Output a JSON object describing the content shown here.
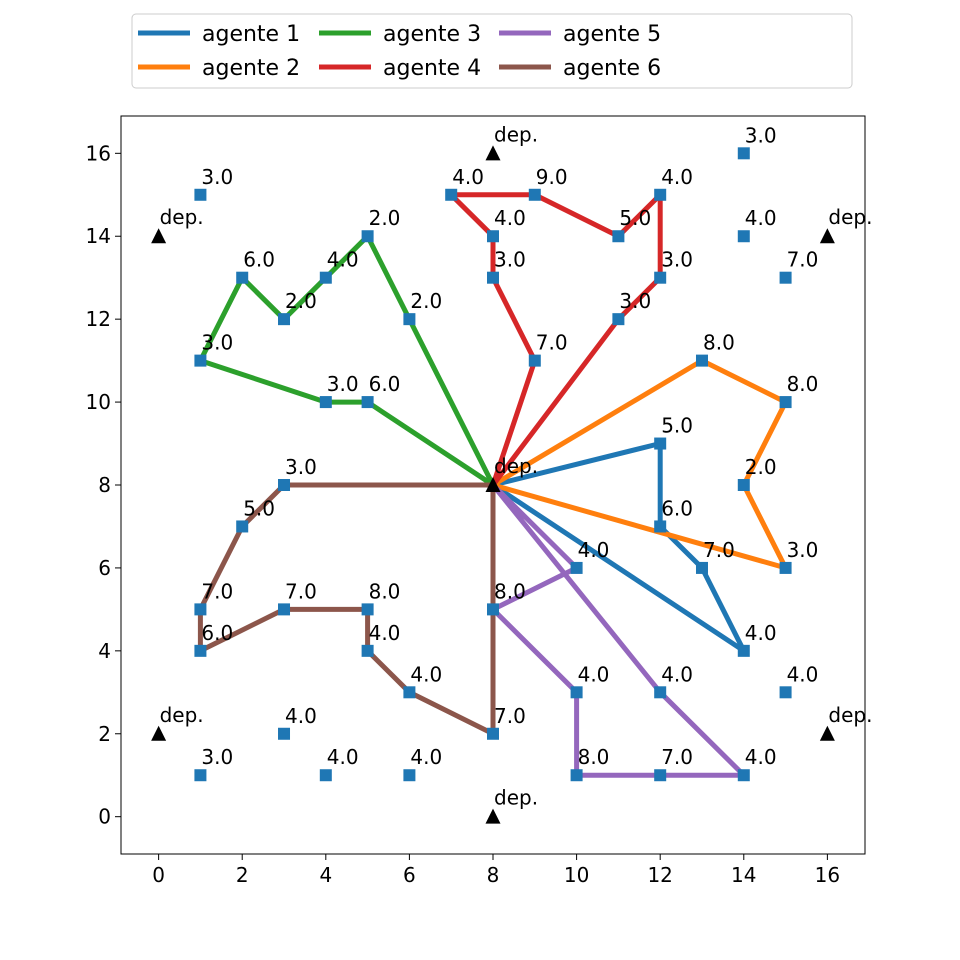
{
  "chart_data": {
    "type": "line",
    "title": "",
    "xlabel": "",
    "ylabel": "",
    "xlim": [
      -0.9,
      16.9
    ],
    "ylim": [
      -0.9,
      16.9
    ],
    "xticks": [
      0,
      2,
      4,
      6,
      8,
      10,
      12,
      14,
      16
    ],
    "yticks": [
      0,
      2,
      4,
      6,
      8,
      10,
      12,
      14,
      16
    ],
    "grid": false,
    "legend": {
      "position": "top-outside",
      "columns": 4
    },
    "depot_label": "dep.",
    "depots": [
      {
        "x": 8,
        "y": 8
      },
      {
        "x": 8,
        "y": 16
      },
      {
        "x": 0,
        "y": 14
      },
      {
        "x": 16,
        "y": 14
      },
      {
        "x": 0,
        "y": 2
      },
      {
        "x": 16,
        "y": 2
      },
      {
        "x": 8,
        "y": 0
      }
    ],
    "customers": [
      {
        "x": 1,
        "y": 15,
        "label": "3.0"
      },
      {
        "x": 7,
        "y": 15,
        "label": "4.0"
      },
      {
        "x": 9,
        "y": 15,
        "label": "9.0"
      },
      {
        "x": 12,
        "y": 15,
        "label": "4.0"
      },
      {
        "x": 14,
        "y": 16,
        "label": "3.0"
      },
      {
        "x": 5,
        "y": 14,
        "label": "2.0"
      },
      {
        "x": 8,
        "y": 14,
        "label": "4.0"
      },
      {
        "x": 11,
        "y": 14,
        "label": "5.0"
      },
      {
        "x": 14,
        "y": 14,
        "label": "4.0"
      },
      {
        "x": 2,
        "y": 13,
        "label": "6.0"
      },
      {
        "x": 4,
        "y": 13,
        "label": "4.0"
      },
      {
        "x": 8,
        "y": 13,
        "label": "3.0"
      },
      {
        "x": 12,
        "y": 13,
        "label": "3.0"
      },
      {
        "x": 15,
        "y": 13,
        "label": "7.0"
      },
      {
        "x": 3,
        "y": 12,
        "label": "2.0"
      },
      {
        "x": 6,
        "y": 12,
        "label": "2.0"
      },
      {
        "x": 11,
        "y": 12,
        "label": "3.0"
      },
      {
        "x": 1,
        "y": 11,
        "label": "3.0"
      },
      {
        "x": 9,
        "y": 11,
        "label": "7.0"
      },
      {
        "x": 13,
        "y": 11,
        "label": "8.0"
      },
      {
        "x": 4,
        "y": 10,
        "label": "3.0"
      },
      {
        "x": 5,
        "y": 10,
        "label": "6.0"
      },
      {
        "x": 15,
        "y": 10,
        "label": "8.0"
      },
      {
        "x": 12,
        "y": 9,
        "label": "5.0"
      },
      {
        "x": 3,
        "y": 8,
        "label": "3.0"
      },
      {
        "x": 14,
        "y": 8,
        "label": "2.0"
      },
      {
        "x": 2,
        "y": 7,
        "label": "5.0"
      },
      {
        "x": 12,
        "y": 7,
        "label": "6.0"
      },
      {
        "x": 10,
        "y": 6,
        "label": "4.0"
      },
      {
        "x": 13,
        "y": 6,
        "label": "7.0"
      },
      {
        "x": 15,
        "y": 6,
        "label": "3.0"
      },
      {
        "x": 1,
        "y": 5,
        "label": "7.0"
      },
      {
        "x": 3,
        "y": 5,
        "label": "7.0"
      },
      {
        "x": 5,
        "y": 5,
        "label": "8.0"
      },
      {
        "x": 8,
        "y": 5,
        "label": "8.0"
      },
      {
        "x": 1,
        "y": 4,
        "label": "6.0"
      },
      {
        "x": 5,
        "y": 4,
        "label": "4.0"
      },
      {
        "x": 14,
        "y": 4,
        "label": "4.0"
      },
      {
        "x": 6,
        "y": 3,
        "label": "4.0"
      },
      {
        "x": 10,
        "y": 3,
        "label": "4.0"
      },
      {
        "x": 12,
        "y": 3,
        "label": "4.0"
      },
      {
        "x": 15,
        "y": 3,
        "label": "4.0"
      },
      {
        "x": 3,
        "y": 2,
        "label": "4.0"
      },
      {
        "x": 8,
        "y": 2,
        "label": "7.0"
      },
      {
        "x": 1,
        "y": 1,
        "label": "3.0"
      },
      {
        "x": 4,
        "y": 1,
        "label": "4.0"
      },
      {
        "x": 6,
        "y": 1,
        "label": "4.0"
      },
      {
        "x": 10,
        "y": 1,
        "label": "8.0"
      },
      {
        "x": 12,
        "y": 1,
        "label": "7.0"
      },
      {
        "x": 14,
        "y": 1,
        "label": "4.0"
      }
    ],
    "series": [
      {
        "name": "agente 1",
        "color": "#1f77b4",
        "points": [
          [
            8,
            8
          ],
          [
            12,
            9
          ],
          [
            12,
            7
          ],
          [
            13,
            6
          ],
          [
            14,
            4
          ],
          [
            8,
            8
          ]
        ]
      },
      {
        "name": "agente 2",
        "color": "#ff7f0e",
        "points": [
          [
            8,
            8
          ],
          [
            13,
            11
          ],
          [
            15,
            10
          ],
          [
            14,
            8
          ],
          [
            15,
            6
          ],
          [
            8,
            8
          ]
        ]
      },
      {
        "name": "agente 3",
        "color": "#2ca02c",
        "points": [
          [
            8,
            8
          ],
          [
            6,
            12
          ],
          [
            5,
            14
          ],
          [
            4,
            13
          ],
          [
            3,
            12
          ],
          [
            2,
            13
          ],
          [
            1,
            11
          ],
          [
            4,
            10
          ],
          [
            5,
            10
          ],
          [
            8,
            8
          ]
        ]
      },
      {
        "name": "agente 4",
        "color": "#d62728",
        "points": [
          [
            8,
            8
          ],
          [
            9,
            11
          ],
          [
            8,
            13
          ],
          [
            8,
            14
          ],
          [
            7,
            15
          ],
          [
            9,
            15
          ],
          [
            11,
            14
          ],
          [
            12,
            15
          ],
          [
            12,
            13
          ],
          [
            11,
            12
          ],
          [
            8,
            8
          ]
        ]
      },
      {
        "name": "agente 5",
        "color": "#9467bd",
        "points": [
          [
            8,
            8
          ],
          [
            10,
            6
          ],
          [
            8,
            5
          ],
          [
            10,
            3
          ],
          [
            10,
            1
          ],
          [
            12,
            1
          ],
          [
            14,
            1
          ],
          [
            12,
            3
          ],
          [
            8,
            8
          ]
        ]
      },
      {
        "name": "agente 6",
        "color": "#8c564b",
        "points": [
          [
            8,
            8
          ],
          [
            3,
            8
          ],
          [
            2,
            7
          ],
          [
            1,
            5
          ],
          [
            1,
            4
          ],
          [
            3,
            5
          ],
          [
            5,
            5
          ],
          [
            5,
            4
          ],
          [
            6,
            3
          ],
          [
            8,
            2
          ],
          [
            8,
            5
          ],
          [
            8,
            8
          ]
        ]
      }
    ],
    "marker_color": "#1f77b4",
    "depot_color": "#000000"
  }
}
